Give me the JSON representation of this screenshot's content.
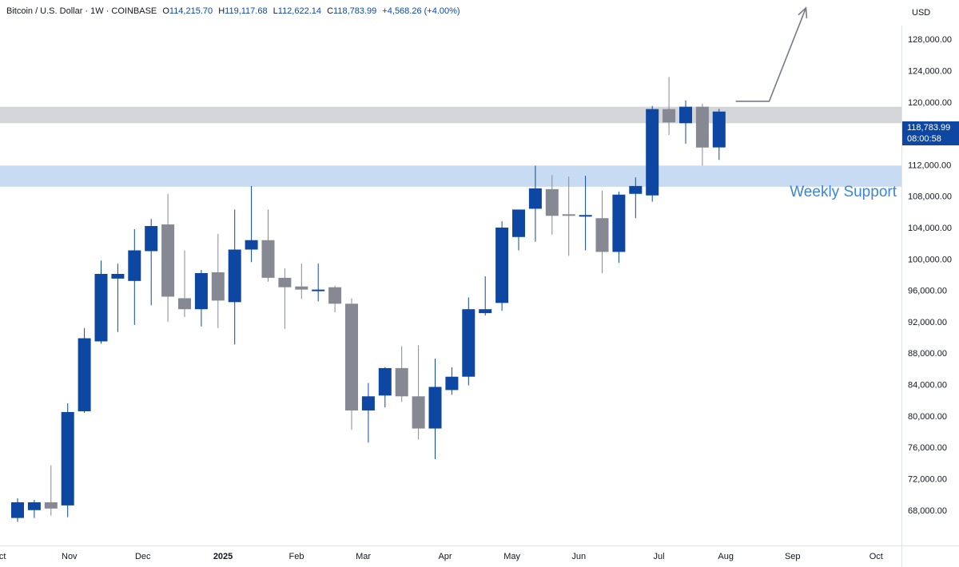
{
  "header": {
    "symbol": "Bitcoin / U.S. Dollar · 1W · COINBASE",
    "open_label": "O",
    "open": "114,215.70",
    "high_label": "H",
    "high": "119,117.68",
    "low_label": "L",
    "low": "112,622.14",
    "close_label": "C",
    "close": "118,783.99",
    "change": "+4,568.26 (+4.00%)"
  },
  "axis": {
    "currency": "USD"
  },
  "price_tag": {
    "price": "118,783.99",
    "countdown": "08:00:58"
  },
  "colors": {
    "up": "#0d47a1",
    "down": "#868993",
    "support": "#c7dcf3",
    "resistance": "#d4d5d8",
    "text": "#131722",
    "support_text": "#3b86d6"
  },
  "chart_data": {
    "type": "candlestick",
    "title": "Bitcoin / U.S. Dollar · 1W · COINBASE",
    "xlabel": "",
    "ylabel": "",
    "ylim": [
      63500,
      133000
    ],
    "y_ticks": [
      "68,000.00",
      "72,000.00",
      "76,000.00",
      "80,000.00",
      "84,000.00",
      "88,000.00",
      "92,000.00",
      "96,000.00",
      "100,000.00",
      "104,000.00",
      "108,000.00",
      "112,000.00",
      "116,000.00",
      "120,000.00",
      "124,000.00",
      "128,000.00"
    ],
    "y_tick_values": [
      68000,
      72000,
      76000,
      80000,
      84000,
      88000,
      92000,
      96000,
      100000,
      104000,
      108000,
      112000,
      116000,
      120000,
      124000,
      128000
    ],
    "x_labels": [
      {
        "label": "ct",
        "bar": -0.9
      },
      {
        "label": "Nov",
        "bar": 3.1
      },
      {
        "label": "Dec",
        "bar": 7.5
      },
      {
        "label": "2025",
        "bar": 12.3,
        "bold": true
      },
      {
        "label": "Feb",
        "bar": 16.7
      },
      {
        "label": "Mar",
        "bar": 20.7
      },
      {
        "label": "Apr",
        "bar": 25.6
      },
      {
        "label": "May",
        "bar": 29.6
      },
      {
        "label": "Jun",
        "bar": 33.6
      },
      {
        "label": "Jul",
        "bar": 38.4
      },
      {
        "label": "Aug",
        "bar": 42.4
      },
      {
        "label": "Sep",
        "bar": 46.4
      },
      {
        "label": "Oct",
        "bar": 51.4
      }
    ],
    "candles": [
      {
        "o": 67000,
        "h": 69500,
        "l": 66500,
        "c": 69000
      },
      {
        "o": 68000,
        "h": 69300,
        "l": 67000,
        "c": 69000
      },
      {
        "o": 69000,
        "h": 73700,
        "l": 67300,
        "c": 68200
      },
      {
        "o": 68600,
        "h": 81600,
        "l": 67100,
        "c": 80500
      },
      {
        "o": 80600,
        "h": 91200,
        "l": 80400,
        "c": 89900
      },
      {
        "o": 89500,
        "h": 99800,
        "l": 89200,
        "c": 98100
      },
      {
        "o": 97500,
        "h": 99400,
        "l": 90700,
        "c": 98100
      },
      {
        "o": 97200,
        "h": 103800,
        "l": 91600,
        "c": 101100
      },
      {
        "o": 101000,
        "h": 105100,
        "l": 94100,
        "c": 104200
      },
      {
        "o": 104400,
        "h": 108300,
        "l": 92000,
        "c": 95200
      },
      {
        "o": 95000,
        "h": 101100,
        "l": 92600,
        "c": 93600
      },
      {
        "o": 93600,
        "h": 98600,
        "l": 91400,
        "c": 98200
      },
      {
        "o": 98300,
        "h": 103200,
        "l": 91200,
        "c": 94700
      },
      {
        "o": 94500,
        "h": 106300,
        "l": 89100,
        "c": 101200
      },
      {
        "o": 101200,
        "h": 109300,
        "l": 99600,
        "c": 102400
      },
      {
        "o": 102400,
        "h": 106300,
        "l": 97100,
        "c": 97600
      },
      {
        "o": 97600,
        "h": 98800,
        "l": 91100,
        "c": 96400
      },
      {
        "o": 96500,
        "h": 99400,
        "l": 94900,
        "c": 96100
      },
      {
        "o": 96100,
        "h": 99400,
        "l": 94600,
        "c": 96100
      },
      {
        "o": 96400,
        "h": 96600,
        "l": 93200,
        "c": 94300
      },
      {
        "o": 94300,
        "h": 95000,
        "l": 78200,
        "c": 80700
      },
      {
        "o": 80700,
        "h": 84200,
        "l": 76600,
        "c": 82500
      },
      {
        "o": 82600,
        "h": 86200,
        "l": 81100,
        "c": 86100
      },
      {
        "o": 86100,
        "h": 88900,
        "l": 81800,
        "c": 82500
      },
      {
        "o": 82500,
        "h": 89000,
        "l": 77000,
        "c": 78400
      },
      {
        "o": 78400,
        "h": 87300,
        "l": 74500,
        "c": 83700
      },
      {
        "o": 83300,
        "h": 86200,
        "l": 82700,
        "c": 85000
      },
      {
        "o": 85000,
        "h": 95100,
        "l": 83900,
        "c": 93600
      },
      {
        "o": 93100,
        "h": 97800,
        "l": 92800,
        "c": 93600
      },
      {
        "o": 94400,
        "h": 104800,
        "l": 93400,
        "c": 104000
      },
      {
        "o": 102800,
        "h": 106000,
        "l": 101100,
        "c": 106300
      },
      {
        "o": 106400,
        "h": 111900,
        "l": 102200,
        "c": 109000
      },
      {
        "o": 108900,
        "h": 110700,
        "l": 103100,
        "c": 105500
      },
      {
        "o": 105700,
        "h": 110500,
        "l": 100400,
        "c": 105600
      },
      {
        "o": 105500,
        "h": 110600,
        "l": 101100,
        "c": 105600
      },
      {
        "o": 105200,
        "h": 108700,
        "l": 98200,
        "c": 100900
      },
      {
        "o": 100900,
        "h": 108600,
        "l": 99500,
        "c": 108200
      },
      {
        "o": 108300,
        "h": 110400,
        "l": 105200,
        "c": 109300
      },
      {
        "o": 108100,
        "h": 119500,
        "l": 107300,
        "c": 119100
      },
      {
        "o": 119100,
        "h": 123200,
        "l": 115800,
        "c": 117400
      },
      {
        "o": 117300,
        "h": 120200,
        "l": 114700,
        "c": 119400
      },
      {
        "o": 119400,
        "h": 119800,
        "l": 111900,
        "c": 114200
      },
      {
        "o": 114215.7,
        "h": 119117.68,
        "l": 112622.14,
        "c": 118783.99
      }
    ],
    "zones": [
      {
        "name": "resistance",
        "from": 117300,
        "to": 119400
      },
      {
        "name": "support",
        "label": "Weekly Support",
        "from": 109200,
        "to": 111900
      }
    ],
    "projection": [
      {
        "bar": 43.0,
        "price": 120100
      },
      {
        "bar": 45.0,
        "price": 120100
      },
      {
        "bar": 47.2,
        "price": 132000
      }
    ],
    "last_price": 118783.99,
    "grid": false,
    "legend": "top-left"
  }
}
